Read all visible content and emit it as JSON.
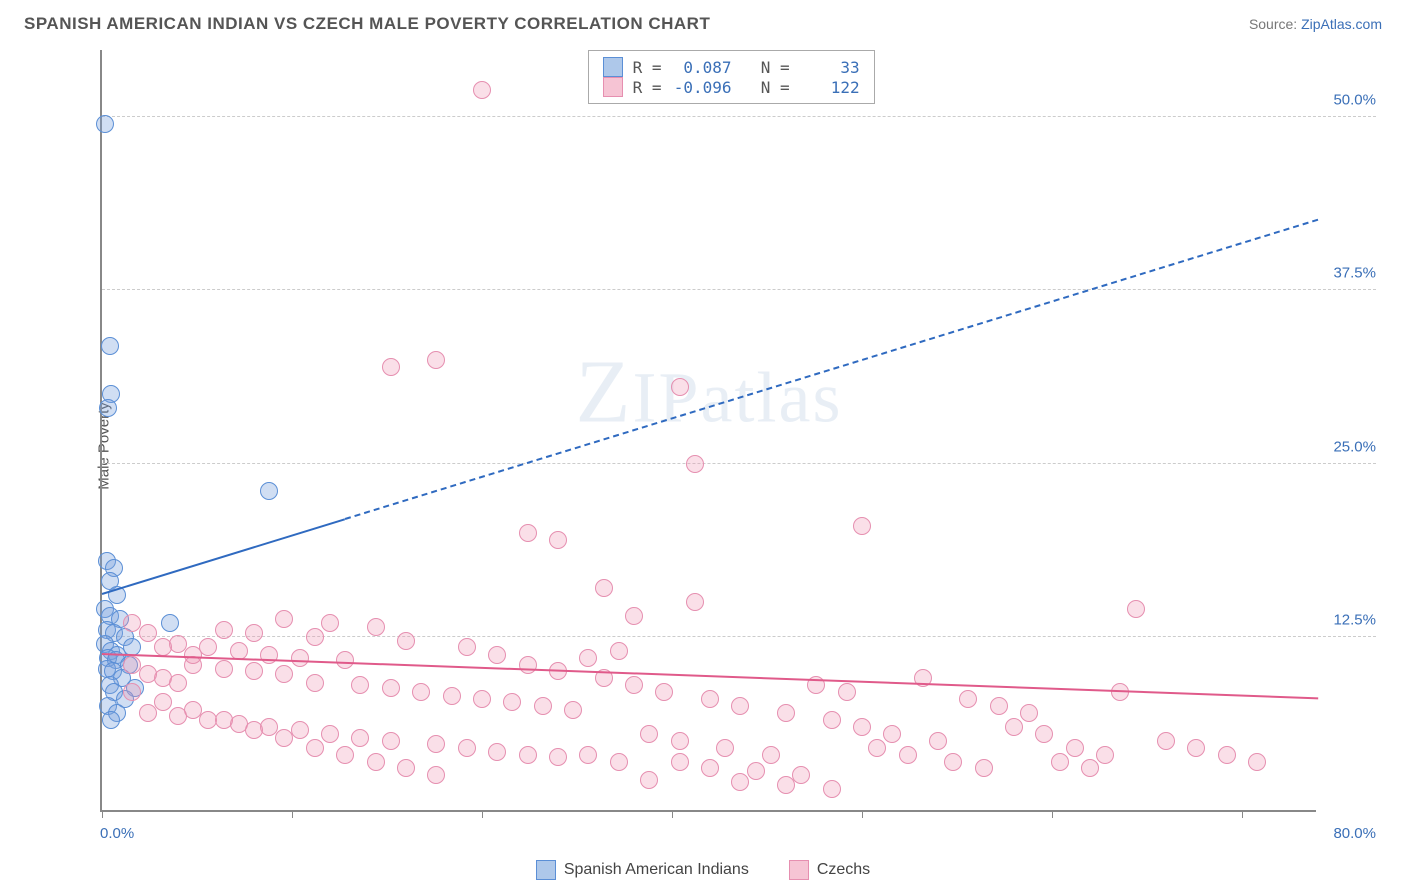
{
  "header": {
    "title": "SPANISH AMERICAN INDIAN VS CZECH MALE POVERTY CORRELATION CHART",
    "source_prefix": "Source: ",
    "source_link": "ZipAtlas.com"
  },
  "watermark": {
    "z": "Z",
    "ip": "IP",
    "atlas": "atlas"
  },
  "chart": {
    "type": "scatter",
    "ylabel": "Male Poverty",
    "xlim": [
      0,
      80
    ],
    "ylim": [
      0,
      55
    ],
    "xticks_pct": [
      0,
      12.5,
      25,
      37.5,
      50,
      62.5,
      75
    ],
    "yticks": [
      12.5,
      25.0,
      37.5,
      50.0
    ],
    "ytick_labels": [
      "12.5%",
      "25.0%",
      "37.5%",
      "50.0%"
    ],
    "xlabel_min": "0.0%",
    "xlabel_max": "80.0%",
    "grid_color": "#cccccc",
    "axis_color": "#888888",
    "label_color": "#3a6fb7",
    "marker_radius": 9,
    "marker_border_width": 1.5,
    "series": [
      {
        "name": "Spanish American Indians",
        "fill": "rgba(120,160,220,0.35)",
        "stroke": "#5b8fd6",
        "swatch_fill": "#aec8ea",
        "swatch_stroke": "#5b8fd6",
        "R": "0.087",
        "N": "33",
        "trend": {
          "x1": 0,
          "y1": 15.5,
          "x2": 80,
          "y2": 42.5,
          "solid_until_x": 16,
          "color": "#2f6ac0",
          "width": 2
        },
        "points": [
          [
            0.2,
            49.5
          ],
          [
            0.5,
            33.5
          ],
          [
            0.6,
            30.0
          ],
          [
            0.4,
            29.0
          ],
          [
            11,
            23.0
          ],
          [
            0.3,
            18.0
          ],
          [
            0.8,
            17.5
          ],
          [
            0.5,
            16.5
          ],
          [
            1.0,
            15.5
          ],
          [
            0.2,
            14.5
          ],
          [
            0.5,
            14.0
          ],
          [
            1.2,
            13.8
          ],
          [
            4.5,
            13.5
          ],
          [
            0.3,
            13.0
          ],
          [
            0.8,
            12.8
          ],
          [
            1.5,
            12.5
          ],
          [
            0.2,
            12.0
          ],
          [
            2.0,
            11.8
          ],
          [
            0.6,
            11.5
          ],
          [
            1.0,
            11.2
          ],
          [
            0.4,
            11.0
          ],
          [
            0.9,
            10.8
          ],
          [
            1.8,
            10.5
          ],
          [
            0.3,
            10.2
          ],
          [
            0.7,
            10.0
          ],
          [
            1.3,
            9.5
          ],
          [
            0.5,
            9.0
          ],
          [
            2.2,
            8.8
          ],
          [
            0.8,
            8.5
          ],
          [
            1.5,
            8.0
          ],
          [
            0.4,
            7.5
          ],
          [
            1.0,
            7.0
          ],
          [
            0.6,
            6.5
          ]
        ]
      },
      {
        "name": "Czechs",
        "fill": "rgba(240,150,180,0.30)",
        "stroke": "#e68fb0",
        "swatch_fill": "#f6c4d4",
        "swatch_stroke": "#e68fb0",
        "R": "-0.096",
        "N": "122",
        "trend": {
          "x1": 0,
          "y1": 11.2,
          "x2": 80,
          "y2": 8.0,
          "solid_until_x": 80,
          "color": "#e05a8a",
          "width": 2
        },
        "points": [
          [
            25,
            52.0
          ],
          [
            22,
            32.5
          ],
          [
            19,
            32.0
          ],
          [
            38,
            30.5
          ],
          [
            39,
            25.0
          ],
          [
            50,
            20.5
          ],
          [
            28,
            20.0
          ],
          [
            30,
            19.5
          ],
          [
            33,
            16.0
          ],
          [
            39,
            15.0
          ],
          [
            68,
            14.5
          ],
          [
            35,
            14.0
          ],
          [
            12,
            13.8
          ],
          [
            15,
            13.5
          ],
          [
            18,
            13.2
          ],
          [
            8,
            13.0
          ],
          [
            10,
            12.8
          ],
          [
            14,
            12.5
          ],
          [
            20,
            12.2
          ],
          [
            5,
            12.0
          ],
          [
            7,
            11.8
          ],
          [
            9,
            11.5
          ],
          [
            11,
            11.2
          ],
          [
            13,
            11.0
          ],
          [
            16,
            10.8
          ],
          [
            6,
            10.5
          ],
          [
            8,
            10.2
          ],
          [
            10,
            10.0
          ],
          [
            12,
            9.8
          ],
          [
            4,
            9.5
          ],
          [
            14,
            9.2
          ],
          [
            17,
            9.0
          ],
          [
            19,
            8.8
          ],
          [
            21,
            8.5
          ],
          [
            23,
            8.2
          ],
          [
            25,
            8.0
          ],
          [
            27,
            7.8
          ],
          [
            29,
            7.5
          ],
          [
            31,
            7.2
          ],
          [
            3,
            7.0
          ],
          [
            5,
            6.8
          ],
          [
            7,
            6.5
          ],
          [
            9,
            6.2
          ],
          [
            11,
            6.0
          ],
          [
            13,
            5.8
          ],
          [
            15,
            5.5
          ],
          [
            17,
            5.2
          ],
          [
            19,
            5.0
          ],
          [
            22,
            4.8
          ],
          [
            24,
            4.5
          ],
          [
            26,
            4.2
          ],
          [
            28,
            4.0
          ],
          [
            30,
            3.8
          ],
          [
            33,
            9.5
          ],
          [
            35,
            9.0
          ],
          [
            37,
            8.5
          ],
          [
            40,
            8.0
          ],
          [
            42,
            7.5
          ],
          [
            45,
            7.0
          ],
          [
            48,
            6.5
          ],
          [
            50,
            6.0
          ],
          [
            52,
            5.5
          ],
          [
            55,
            5.0
          ],
          [
            38,
            3.5
          ],
          [
            40,
            3.0
          ],
          [
            43,
            2.8
          ],
          [
            46,
            2.5
          ],
          [
            36,
            2.2
          ],
          [
            34,
            11.5
          ],
          [
            32,
            11.0
          ],
          [
            36,
            5.5
          ],
          [
            38,
            5.0
          ],
          [
            41,
            4.5
          ],
          [
            44,
            4.0
          ],
          [
            47,
            9.0
          ],
          [
            49,
            8.5
          ],
          [
            51,
            4.5
          ],
          [
            53,
            4.0
          ],
          [
            56,
            3.5
          ],
          [
            58,
            3.0
          ],
          [
            42,
            2.0
          ],
          [
            45,
            1.8
          ],
          [
            48,
            1.5
          ],
          [
            60,
            6.0
          ],
          [
            62,
            5.5
          ],
          [
            54,
            9.5
          ],
          [
            57,
            8.0
          ],
          [
            59,
            7.5
          ],
          [
            61,
            7.0
          ],
          [
            64,
            4.5
          ],
          [
            66,
            4.0
          ],
          [
            63,
            3.5
          ],
          [
            65,
            3.0
          ],
          [
            67,
            8.5
          ],
          [
            70,
            5.0
          ],
          [
            72,
            4.5
          ],
          [
            74,
            4.0
          ],
          [
            76,
            3.5
          ],
          [
            2,
            13.5
          ],
          [
            3,
            12.8
          ],
          [
            4,
            11.8
          ],
          [
            6,
            11.2
          ],
          [
            2,
            10.5
          ],
          [
            3,
            9.8
          ],
          [
            5,
            9.2
          ],
          [
            2,
            8.5
          ],
          [
            4,
            7.8
          ],
          [
            6,
            7.2
          ],
          [
            8,
            6.5
          ],
          [
            10,
            5.8
          ],
          [
            12,
            5.2
          ],
          [
            14,
            4.5
          ],
          [
            16,
            4.0
          ],
          [
            18,
            3.5
          ],
          [
            20,
            3.0
          ],
          [
            22,
            2.5
          ],
          [
            24,
            11.8
          ],
          [
            26,
            11.2
          ],
          [
            28,
            10.5
          ],
          [
            30,
            10.0
          ],
          [
            32,
            4.0
          ],
          [
            34,
            3.5
          ]
        ]
      }
    ],
    "bottom_legend": [
      {
        "label": "Spanish American Indians",
        "fill": "#aec8ea",
        "stroke": "#5b8fd6"
      },
      {
        "label": "Czechs",
        "fill": "#f6c4d4",
        "stroke": "#e68fb0"
      }
    ]
  }
}
